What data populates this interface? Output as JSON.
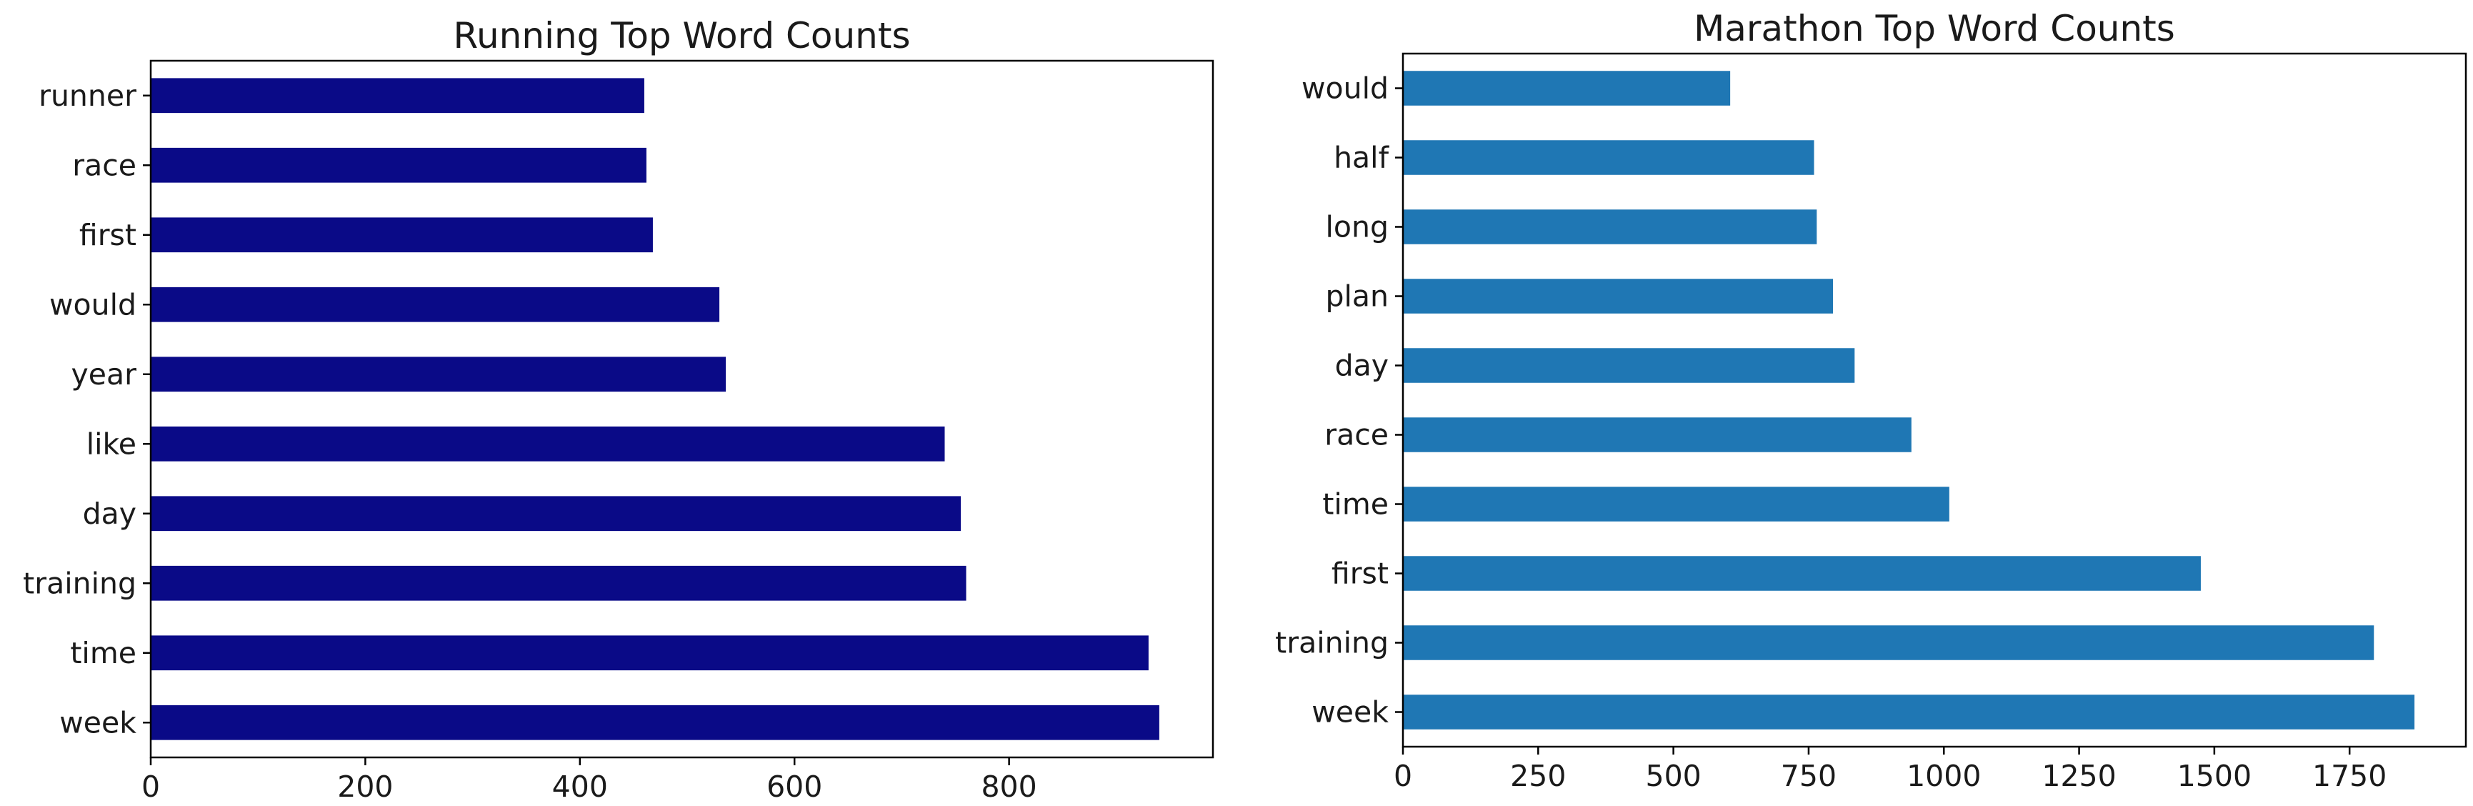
{
  "chart_data": [
    {
      "type": "bar",
      "orientation": "horizontal",
      "title": "Running Top Word Counts",
      "color": "#0a0a87",
      "categories": [
        "runner",
        "race",
        "first",
        "would",
        "year",
        "like",
        "day",
        "training",
        "time",
        "week"
      ],
      "values": [
        460,
        462,
        468,
        530,
        536,
        740,
        755,
        760,
        930,
        940
      ],
      "xlim": [
        0,
        990
      ],
      "xticks": [
        0,
        200,
        400,
        600,
        800
      ],
      "xtick_labels": [
        "0",
        "200",
        "400",
        "600",
        "800"
      ],
      "xlabel": "",
      "ylabel": ""
    },
    {
      "type": "bar",
      "orientation": "horizontal",
      "title": "Marathon Top Word Counts",
      "color": "#1f77b4",
      "categories": [
        "would",
        "half",
        "long",
        "plan",
        "day",
        "race",
        "time",
        "first",
        "training",
        "week"
      ],
      "values": [
        605,
        760,
        765,
        795,
        835,
        940,
        1010,
        1475,
        1795,
        1870
      ],
      "xlim": [
        0,
        1965
      ],
      "xticks": [
        0,
        250,
        500,
        750,
        1000,
        1250,
        1500,
        1750
      ],
      "xtick_labels": [
        "0",
        "250",
        "500",
        "750",
        "1000",
        "1250",
        "1500",
        "1750"
      ],
      "xlabel": "",
      "ylabel": ""
    }
  ]
}
